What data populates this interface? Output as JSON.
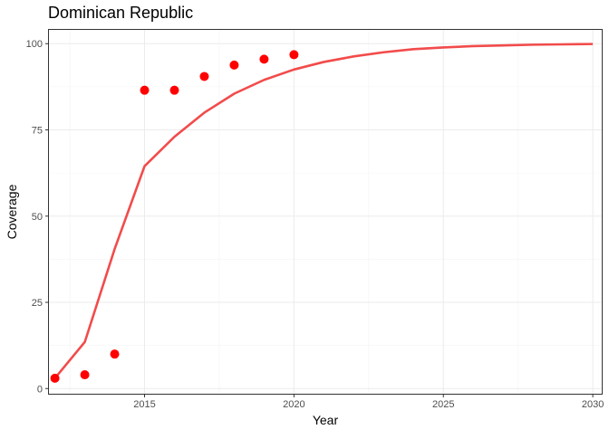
{
  "chart_data": {
    "type": "scatter",
    "title": "Dominican Republic",
    "xlabel": "Year",
    "ylabel": "Coverage",
    "xlim": [
      2011.8,
      2030.3
    ],
    "ylim": [
      -1.5,
      104
    ],
    "x_ticks": [
      2015,
      2020,
      2025,
      2030
    ],
    "y_ticks": [
      0,
      25,
      50,
      75,
      100
    ],
    "x_tick_labels": [
      "2015",
      "2020",
      "2025",
      "2030"
    ],
    "y_tick_labels": [
      "0",
      "25",
      "50",
      "75",
      "100"
    ],
    "grid": true,
    "legend": "none",
    "series": [
      {
        "kind": "points",
        "color": "#ff0000",
        "x": [
          2012,
          2013,
          2014,
          2015,
          2016,
          2017,
          2018,
          2019,
          2020
        ],
        "y": [
          3,
          4,
          10,
          86.5,
          86.5,
          90.5,
          93.8,
          95.5,
          96.8
        ]
      },
      {
        "kind": "line",
        "color": "#f24b4b",
        "x": [
          2012,
          2013,
          2014,
          2015,
          2016,
          2017,
          2018,
          2019,
          2020,
          2021,
          2022,
          2023,
          2024,
          2025,
          2026,
          2027,
          2028,
          2029,
          2030
        ],
        "y": [
          3,
          13.5,
          40.5,
          64.5,
          73,
          80,
          85.5,
          89.5,
          92.5,
          94.7,
          96.3,
          97.5,
          98.4,
          98.9,
          99.3,
          99.5,
          99.7,
          99.8,
          99.9
        ]
      }
    ]
  }
}
